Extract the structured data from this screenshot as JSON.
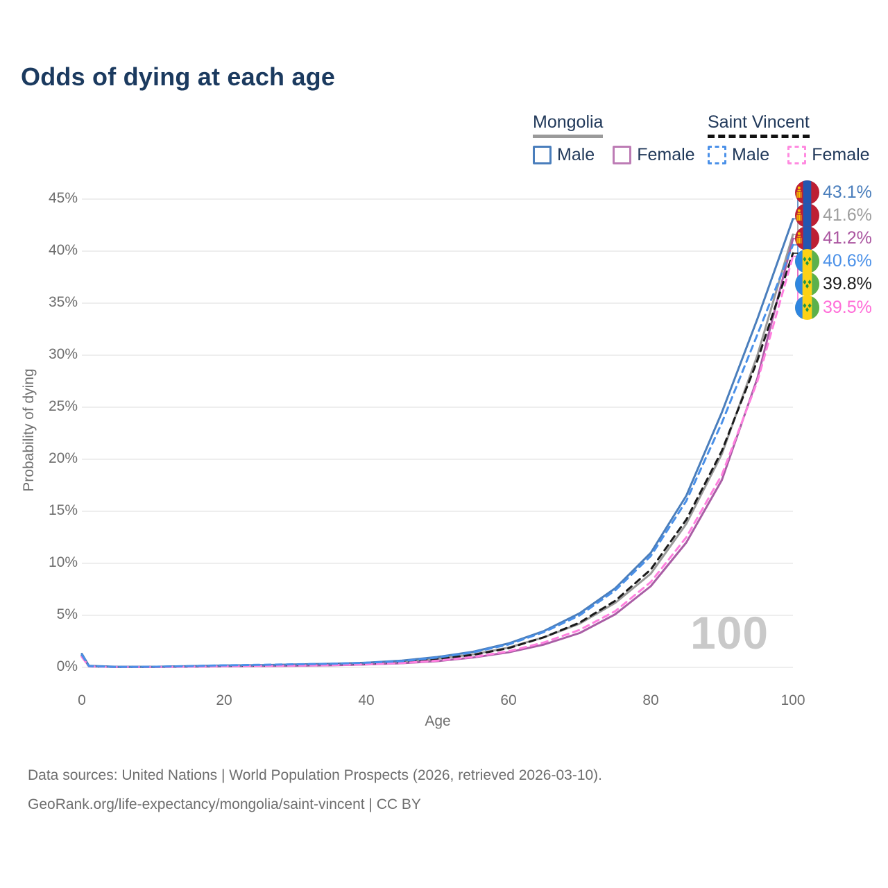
{
  "title": "Odds of dying at each age",
  "watermark": "100",
  "legend": {
    "mongolia": {
      "title": "Mongolia",
      "male": "Male",
      "female": "Female"
    },
    "saint_vincent": {
      "title": "Saint Vincent",
      "male": "Male",
      "female": "Female"
    }
  },
  "footer": {
    "line1": "Data sources: United Nations | World Population Prospects (2026, retrieved 2026-03-10).",
    "line2": "GeoRank.org/life-expectancy/mongolia/saint-vincent | CC BY"
  },
  "colors": {
    "title_navy": "#1b3a5f",
    "legend_navy": "#21395a",
    "mongolia_male_blue": "#4a7ebc",
    "mongolia_female_purple": "#a95da5",
    "mongolia_total_gray": "#9a9a9a",
    "sv_male_blue": "#4a90e8",
    "sv_female_pink": "#ff80df",
    "sv_total_black": "#1b1b1b",
    "gridline": "#e9e9e9",
    "tick_gray": "#6e6e6e",
    "watermark_gray": "#c9c9c9"
  },
  "chart_data": {
    "type": "line",
    "title": "Odds of dying at each age",
    "xlabel": "Age",
    "ylabel": "Probability of dying",
    "xlim": [
      0,
      100
    ],
    "ylim": [
      0,
      45
    ],
    "grid": "horizontal-only",
    "x_tick_labels": [
      "0",
      "20",
      "40",
      "60",
      "80",
      "100"
    ],
    "x_tick_values": [
      0,
      20,
      40,
      60,
      80,
      100
    ],
    "y_tick_labels": [
      "0%",
      "5%",
      "10%",
      "15%",
      "20%",
      "25%",
      "30%",
      "35%",
      "40%",
      "45%"
    ],
    "y_tick_values": [
      0,
      5,
      10,
      15,
      20,
      25,
      30,
      35,
      40,
      45
    ],
    "x": [
      0,
      1,
      5,
      10,
      15,
      20,
      25,
      30,
      35,
      40,
      45,
      50,
      55,
      60,
      65,
      70,
      75,
      80,
      85,
      90,
      95,
      100
    ],
    "series": [
      {
        "id": "mongolia-total",
        "name": "Mongolia (both sexes)",
        "country": "mongolia",
        "line_style": "solid",
        "color": "#9a9a9a",
        "values": [
          1.2,
          0.12,
          0.05,
          0.05,
          0.1,
          0.15,
          0.19,
          0.23,
          0.29,
          0.38,
          0.53,
          0.82,
          1.25,
          1.9,
          2.9,
          4.2,
          6.2,
          9.0,
          13.8,
          20.5,
          30.0,
          41.6
        ]
      },
      {
        "id": "mongolia-female",
        "name": "Mongolia Female",
        "country": "mongolia",
        "line_style": "solid",
        "color": "#a95da5",
        "values": [
          1.1,
          0.1,
          0.04,
          0.04,
          0.07,
          0.1,
          0.13,
          0.16,
          0.2,
          0.28,
          0.4,
          0.6,
          0.95,
          1.45,
          2.2,
          3.3,
          5.1,
          7.8,
          12.0,
          18.0,
          27.8,
          41.2
        ]
      },
      {
        "id": "mongolia-male",
        "name": "Mongolia Male",
        "country": "mongolia",
        "line_style": "solid",
        "color": "#4a7ebc",
        "values": [
          1.3,
          0.15,
          0.06,
          0.06,
          0.12,
          0.18,
          0.22,
          0.28,
          0.35,
          0.45,
          0.65,
          1.0,
          1.5,
          2.3,
          3.5,
          5.2,
          7.6,
          11.0,
          16.5,
          24.5,
          33.5,
          43.1
        ]
      },
      {
        "id": "sv-total",
        "name": "Saint Vincent (both sexes)",
        "country": "saint-vincent",
        "line_style": "dashed",
        "color": "#1b1b1b",
        "values": [
          1.1,
          0.1,
          0.04,
          0.05,
          0.09,
          0.14,
          0.18,
          0.22,
          0.28,
          0.36,
          0.5,
          0.8,
          1.2,
          1.85,
          2.9,
          4.3,
          6.4,
          9.4,
          14.2,
          20.8,
          29.5,
          39.8
        ]
      },
      {
        "id": "sv-female",
        "name": "Saint Vincent Female",
        "country": "saint-vincent",
        "line_style": "dashed",
        "color": "#ff80df",
        "values": [
          1.0,
          0.09,
          0.04,
          0.04,
          0.07,
          0.11,
          0.14,
          0.18,
          0.22,
          0.3,
          0.42,
          0.65,
          1.0,
          1.55,
          2.4,
          3.6,
          5.4,
          8.2,
          12.5,
          18.5,
          27.5,
          39.5
        ]
      },
      {
        "id": "sv-male",
        "name": "Saint Vincent Male",
        "country": "saint-vincent",
        "line_style": "dashed",
        "color": "#4a90e8",
        "values": [
          1.2,
          0.12,
          0.05,
          0.06,
          0.12,
          0.2,
          0.25,
          0.3,
          0.35,
          0.45,
          0.6,
          0.95,
          1.45,
          2.2,
          3.4,
          5.0,
          7.4,
          10.7,
          16.0,
          23.5,
          32.0,
          40.6
        ]
      }
    ],
    "end_labels": [
      {
        "series": "mongolia-male",
        "value": "43.1%",
        "color": "#4a7ebc",
        "country": "mongolia"
      },
      {
        "series": "mongolia-total",
        "value": "41.6%",
        "color": "#9e9e9e",
        "country": "mongolia"
      },
      {
        "series": "mongolia-female",
        "value": "41.2%",
        "color": "#aa55a0",
        "country": "mongolia"
      },
      {
        "series": "sv-male",
        "value": "40.6%",
        "color": "#4a90e8",
        "country": "saint-vincent"
      },
      {
        "series": "sv-total",
        "value": "39.8%",
        "color": "#1b1b1b",
        "country": "saint-vincent"
      },
      {
        "series": "sv-female",
        "value": "39.5%",
        "color": "#ff6ed8",
        "country": "saint-vincent"
      }
    ]
  }
}
